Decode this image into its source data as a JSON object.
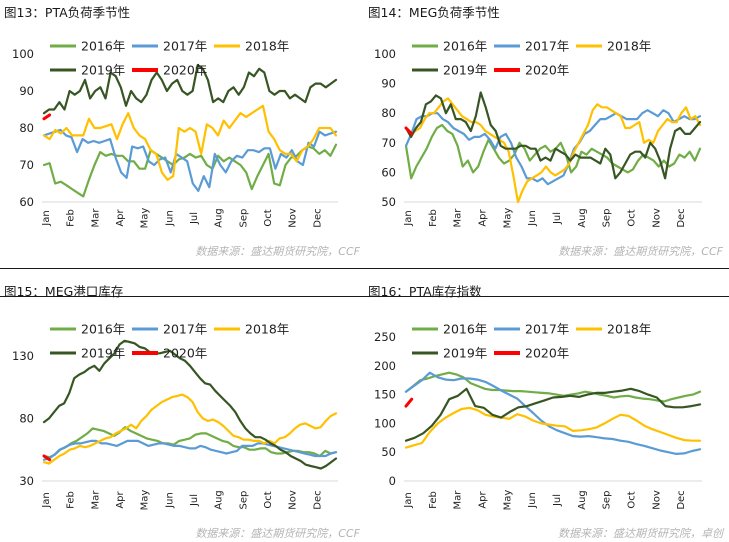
{
  "source_text": "数据来源：盛达期货研究院，CCF",
  "source_text_alt": "数据来源：盛达期货研究院，卓创",
  "colors": {
    "2016年": "#70ad47",
    "2017年": "#5b9bd5",
    "2018年": "#ffc000",
    "2019年": "#375623",
    "2020年": "#ff0000"
  },
  "chart_data": [
    {
      "id": "c13",
      "title": "图13：PTA负荷季节性",
      "type": "line",
      "ylim": [
        60,
        100
      ],
      "yticks": [
        60,
        70,
        80,
        90,
        100
      ],
      "months": [
        "Jan",
        "Feb",
        "Mar",
        "Apr",
        "May",
        "Jun",
        "Jul",
        "Aug",
        "Sep",
        "Oct",
        "Nov",
        "Dec"
      ],
      "series": [
        {
          "name": "2016年",
          "values": [
            70,
            70.5,
            65,
            65.5,
            64.5,
            63.5,
            62.5,
            61.5,
            66,
            70,
            73.5,
            72.5,
            73,
            72.5,
            72.5,
            71,
            71,
            69,
            69,
            74,
            73,
            72,
            71,
            70,
            71.5,
            72,
            73,
            72,
            72.5,
            70,
            69,
            72.5,
            71,
            72,
            71,
            70,
            68,
            63.5,
            67,
            70,
            73,
            65,
            64.5,
            70,
            72,
            72.5,
            74,
            75,
            74.5,
            73,
            74,
            72.5,
            75.5
          ]
        },
        {
          "name": "2017年",
          "values": [
            78,
            78.5,
            79,
            79.5,
            78,
            77.5,
            73.5,
            77,
            76,
            76.5,
            76,
            76.5,
            77,
            72,
            68,
            66.5,
            75,
            74.5,
            75,
            71,
            70,
            71.5,
            72,
            68,
            73,
            72,
            71,
            65,
            63,
            67,
            64,
            73,
            70,
            68,
            71,
            72.5,
            72,
            74,
            74,
            73.5,
            74.5,
            74.5,
            69,
            73,
            72,
            74,
            71,
            70,
            76,
            75,
            79,
            78,
            78.5,
            79
          ]
        },
        {
          "name": "2018年",
          "values": [
            78,
            77,
            79.5,
            78.5,
            80,
            78,
            78,
            78,
            82.5,
            80,
            80,
            80.5,
            81,
            77,
            81,
            84,
            80,
            78,
            77,
            74,
            73,
            68,
            66,
            67,
            80,
            79,
            80,
            79,
            73,
            81,
            80,
            78,
            82,
            80,
            82,
            84,
            83,
            84,
            85,
            86,
            79,
            77,
            74,
            73,
            73,
            71,
            74,
            75,
            77,
            80,
            80,
            80,
            78
          ]
        },
        {
          "name": "2019年",
          "values": [
            84,
            85,
            85,
            87,
            85,
            90,
            89,
            90,
            93,
            88,
            90,
            91,
            88,
            95,
            94,
            91,
            86,
            90,
            88,
            87,
            89,
            93,
            95,
            93,
            90,
            92,
            93,
            90,
            89,
            90,
            97,
            96,
            93,
            87,
            88,
            87,
            90,
            91,
            89,
            91,
            95,
            94,
            96,
            95,
            90,
            89,
            90,
            90,
            88,
            89,
            88,
            87,
            91,
            92,
            92,
            91,
            92,
            93
          ]
        },
        {
          "name": "2020年",
          "values": [
            82.5,
            83.5
          ]
        }
      ]
    },
    {
      "id": "c14",
      "title": "图14：MEG负荷季节性",
      "type": "line",
      "ylim": [
        50,
        100
      ],
      "yticks": [
        50,
        60,
        70,
        80,
        90,
        100
      ],
      "months": [
        "Jan",
        "Feb",
        "Mar",
        "Apr",
        "May",
        "Jun",
        "Jul",
        "Aug",
        "Sep",
        "Oct",
        "Nov",
        "Dec"
      ],
      "series": [
        {
          "name": "2016年",
          "values": [
            69,
            58,
            62,
            65,
            68,
            72,
            75,
            76,
            74,
            73,
            69,
            62,
            64,
            60,
            62,
            67,
            71,
            68,
            65,
            63,
            64,
            66,
            70,
            68,
            64,
            66,
            68,
            69,
            67,
            68,
            70,
            66,
            60,
            62,
            67,
            66,
            68,
            67,
            66,
            65,
            63,
            62,
            61,
            60,
            61,
            64,
            66,
            65,
            64,
            62,
            64,
            62,
            63,
            66,
            65,
            67,
            64,
            68
          ]
        },
        {
          "name": "2017年",
          "values": [
            69,
            73,
            78,
            79,
            79,
            80,
            80,
            78,
            77,
            75,
            74,
            73,
            71,
            72,
            72,
            73,
            71,
            68,
            72,
            73,
            70,
            65,
            62,
            58,
            58,
            57,
            58,
            56,
            57,
            58,
            59,
            63,
            68,
            70,
            73,
            74,
            76,
            78,
            78,
            79,
            80,
            79,
            78,
            78,
            78,
            80,
            81,
            80,
            79,
            81,
            80,
            77,
            78,
            79,
            78,
            78,
            79
          ]
        },
        {
          "name": "2018年",
          "values": [
            75,
            73,
            74,
            75,
            78,
            80,
            80,
            82,
            84,
            85,
            83,
            81,
            79,
            78,
            77,
            77,
            76,
            74,
            73,
            72,
            71,
            70,
            67,
            59,
            50,
            54,
            57,
            58,
            59,
            60,
            62,
            60,
            59,
            60,
            61,
            63,
            67,
            70,
            73,
            76,
            81,
            83,
            82,
            82,
            81,
            80,
            79,
            75,
            75,
            76,
            77,
            70,
            71,
            70,
            74,
            76,
            78,
            77,
            77,
            80,
            82,
            78,
            79,
            76
          ]
        },
        {
          "name": "2019年",
          "values": [
            75,
            72,
            75,
            77,
            83,
            84,
            86,
            85,
            80,
            83,
            78,
            78,
            77,
            74,
            79,
            87,
            82,
            76,
            74,
            69,
            68,
            68,
            68,
            69,
            69,
            68,
            68,
            64,
            65,
            64,
            68,
            67,
            66,
            64,
            66,
            65,
            65,
            65,
            64,
            63,
            68,
            66,
            58,
            60,
            63,
            66,
            67,
            67,
            65,
            70,
            68,
            64,
            58,
            68,
            74,
            75,
            73,
            73,
            75,
            77
          ]
        },
        {
          "name": "2020年",
          "values": [
            75,
            73
          ]
        }
      ]
    },
    {
      "id": "c15",
      "title": "图15：MEG港口库存",
      "type": "line",
      "ylim": [
        30,
        145
      ],
      "yticks": [
        30,
        80,
        130
      ],
      "months": [
        "Jan",
        "Feb",
        "Mar",
        "Apr",
        "May",
        "Jun",
        "Jul",
        "Aug",
        "Sep",
        "Oct",
        "Nov",
        "Dec"
      ],
      "series": [
        {
          "name": "2016年",
          "values": [
            50,
            49,
            51,
            55,
            57,
            60,
            62,
            65,
            68,
            72,
            71,
            70,
            68,
            66,
            69,
            73,
            70,
            68,
            66,
            64,
            63,
            62,
            60,
            60,
            59,
            62,
            63,
            64,
            67,
            68,
            68,
            66,
            64,
            62,
            61,
            58,
            57,
            57,
            55,
            55,
            56,
            56,
            53,
            52,
            52,
            53,
            54,
            54,
            53,
            53,
            52,
            50,
            54,
            52,
            53
          ]
        },
        {
          "name": "2017年",
          "values": [
            47,
            48,
            51,
            55,
            57,
            59,
            60,
            60,
            61,
            62,
            62,
            60,
            60,
            59,
            58,
            60,
            62,
            62,
            62,
            60,
            58,
            59,
            60,
            60,
            59,
            58,
            58,
            57,
            56,
            56,
            58,
            57,
            55,
            54,
            53,
            52,
            53,
            54,
            58,
            58,
            58,
            60,
            60,
            59,
            58,
            57,
            56,
            55,
            54,
            53,
            52,
            51,
            50,
            50,
            50,
            52,
            53
          ]
        },
        {
          "name": "2018年",
          "values": [
            45,
            44,
            47,
            50,
            52,
            55,
            56,
            58,
            57,
            58,
            60,
            62,
            64,
            65,
            68,
            70,
            72,
            75,
            72,
            78,
            82,
            87,
            90,
            93,
            95,
            97,
            98,
            99,
            97,
            93,
            85,
            80,
            78,
            79,
            77,
            74,
            70,
            66,
            65,
            63,
            63,
            62,
            62,
            60,
            62,
            60,
            64,
            65,
            68,
            72,
            75,
            76,
            74,
            72,
            73,
            78,
            82,
            84
          ]
        },
        {
          "name": "2019年",
          "values": [
            77,
            80,
            85,
            90,
            92,
            100,
            112,
            115,
            117,
            120,
            122,
            118,
            124,
            128,
            132,
            139,
            142,
            141,
            140,
            137,
            136,
            133,
            132,
            132,
            133,
            134,
            131,
            128,
            126,
            122,
            117,
            112,
            108,
            107,
            102,
            98,
            94,
            90,
            85,
            78,
            72,
            68,
            65,
            65,
            63,
            60,
            58,
            55,
            53,
            50,
            48,
            46,
            43,
            42,
            41,
            40,
            42,
            45,
            48
          ]
        },
        {
          "name": "2020年",
          "values": [
            50,
            47
          ]
        }
      ]
    },
    {
      "id": "c16",
      "title": "图16：PTA库存指数",
      "type": "line",
      "ylim": [
        0,
        250
      ],
      "yticks": [
        0,
        50,
        100,
        150,
        200,
        250
      ],
      "months": [
        "Jan",
        "Feb",
        "Mar",
        "Apr",
        "May",
        "Jun",
        "Jul",
        "Aug",
        "Sep",
        "Oct",
        "Nov",
        "Dec"
      ],
      "series": [
        {
          "name": "2016年",
          "values": [
            155,
            165,
            175,
            178,
            182,
            185,
            188,
            185,
            180,
            170,
            165,
            160,
            158,
            158,
            157,
            156,
            156,
            155,
            154,
            153,
            152,
            150,
            148,
            150,
            152,
            155,
            153,
            150,
            148,
            145,
            147,
            148,
            145,
            143,
            142,
            140,
            138,
            142,
            145,
            148,
            150,
            155
          ]
        },
        {
          "name": "2017年",
          "values": [
            155,
            165,
            175,
            188,
            180,
            176,
            175,
            178,
            178,
            176,
            172,
            165,
            157,
            150,
            143,
            130,
            118,
            105,
            95,
            88,
            83,
            78,
            77,
            78,
            76,
            74,
            73,
            70,
            68,
            64,
            61,
            57,
            53,
            50,
            47,
            48,
            52,
            55
          ]
        },
        {
          "name": "2018年",
          "values": [
            58,
            62,
            66,
            85,
            100,
            110,
            118,
            125,
            127,
            123,
            115,
            112,
            110,
            108,
            116,
            112,
            105,
            100,
            98,
            96,
            95,
            87,
            88,
            90,
            93,
            100,
            108,
            115,
            113,
            105,
            96,
            90,
            85,
            80,
            75,
            71,
            70,
            70
          ]
        },
        {
          "name": "2019年",
          "values": [
            70,
            75,
            83,
            96,
            115,
            142,
            148,
            160,
            130,
            127,
            115,
            110,
            120,
            128,
            130,
            135,
            140,
            145,
            146,
            148,
            146,
            150,
            153,
            153,
            155,
            157,
            160,
            156,
            150,
            145,
            130,
            128,
            128,
            130,
            133
          ]
        },
        {
          "name": "2020年",
          "values": [
            130,
            142
          ]
        }
      ]
    }
  ]
}
